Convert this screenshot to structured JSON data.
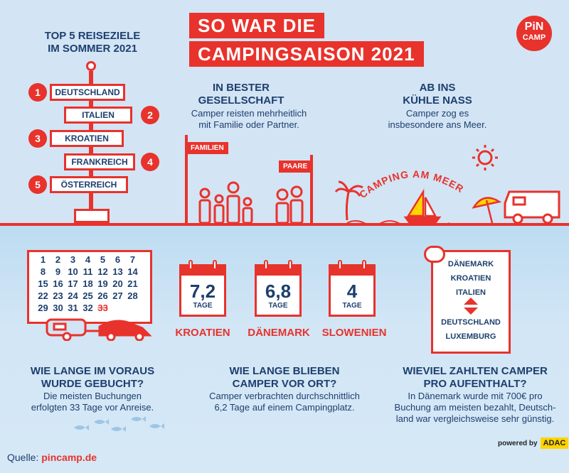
{
  "title": {
    "line1": "SO WAR DIE",
    "line2": "CAMPINGSAISON 2021"
  },
  "logo": {
    "line1": "PiN",
    "line2": "CAMP"
  },
  "top5": {
    "heading_line1": "TOP 5 REISEZIELE",
    "heading_line2": "IM SOMMER 2021",
    "items": [
      {
        "rank": "1",
        "country": "DEUTSCHLAND"
      },
      {
        "rank": "2",
        "country": "ITALIEN"
      },
      {
        "rank": "3",
        "country": "KROATIEN"
      },
      {
        "rank": "4",
        "country": "FRANKREICH"
      },
      {
        "rank": "5",
        "country": "ÖSTERREICH"
      }
    ]
  },
  "company": {
    "heading_line1": "IN BESTER",
    "heading_line2": "GESELLSCHAFT",
    "text_line1": "Camper reisten mehrheitlich",
    "text_line2": "mit Familie oder Partner.",
    "label_families": "FAMILIEN",
    "label_couples": "PAARE"
  },
  "water": {
    "heading_line1": "AB INS",
    "heading_line2": "KÜHLE NASS",
    "text_line1": "Camper zog es",
    "text_line2": "insbesondere ans Meer.",
    "arc_text": "CAMPING AM MEER"
  },
  "booking": {
    "calendar_days": [
      "1",
      "2",
      "3",
      "4",
      "5",
      "6",
      "7",
      "8",
      "9",
      "10",
      "11",
      "12",
      "13",
      "14",
      "15",
      "16",
      "17",
      "18",
      "19",
      "20",
      "21",
      "22",
      "23",
      "24",
      "25",
      "26",
      "27",
      "28",
      "29",
      "30",
      "31",
      "32",
      "33"
    ],
    "heading_line1": "WIE LANGE IM VORAUS",
    "heading_line2": "WURDE GEBUCHT?",
    "text_line1": "Die meisten Buchungen",
    "text_line2": "erfolgten 33 Tage vor Anreise."
  },
  "stay": {
    "stats": [
      {
        "value": "7,2",
        "unit": "TAGE",
        "country": "KROATIEN"
      },
      {
        "value": "6,8",
        "unit": "TAGE",
        "country": "DÄNEMARK"
      },
      {
        "value": "4",
        "unit": "TAGE",
        "country": "SLOWENIEN"
      }
    ],
    "heading_line1": "WIE LANGE BLIEBEN",
    "heading_line2": "CAMPER VOR ORT?",
    "text_line1": "Camper verbrachten durchschnittlich",
    "text_line2": "6,2 Tage auf einem Campingplatz."
  },
  "price": {
    "scroll_top": [
      "DÄNEMARK",
      "KROATIEN",
      "ITALIEN"
    ],
    "scroll_bottom": [
      "DEUTSCHLAND",
      "LUXEMBURG"
    ],
    "heading_line1": "WIEVIEL ZAHLTEN CAMPER",
    "heading_line2": "PRO AUFENTHALT?",
    "text_line1": "In Dänemark wurde mit 700€ pro",
    "text_line2": "Buchung am meisten bezahlt, Deutsch-",
    "text_line3": "land war vergleichsweise sehr günstig."
  },
  "footer": {
    "source_label": "Quelle:",
    "source_value": "pincamp.de",
    "powered_by": "powered by",
    "partner": "ADAC"
  },
  "colors": {
    "accent": "#e8322c",
    "navy": "#1d3f6e",
    "sky": "#d3e4f4",
    "adac": "#ffd400"
  }
}
